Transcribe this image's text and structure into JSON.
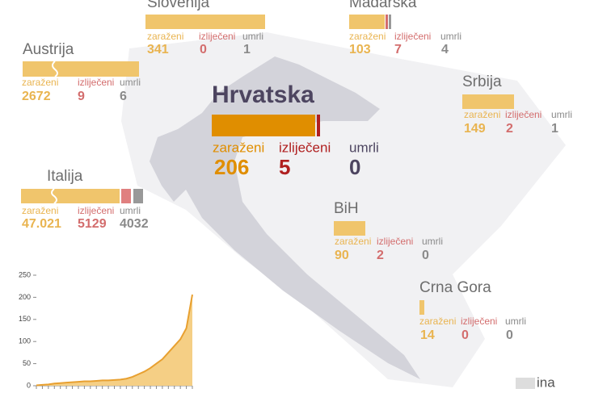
{
  "labels": {
    "infected": "zaraženi",
    "recovered": "izliječeni",
    "deaths": "umrli"
  },
  "countries": [
    {
      "name": "Slovenija",
      "infected": "341",
      "recovered": "0",
      "deaths": "1"
    },
    {
      "name": "Mađarska",
      "infected": "103",
      "recovered": "7",
      "deaths": "4"
    },
    {
      "name": "Austrija",
      "infected": "2672",
      "recovered": "9",
      "deaths": "6"
    },
    {
      "name": "Srbija",
      "infected": "149",
      "recovered": "2",
      "deaths": "1"
    },
    {
      "name": "Hrvatska",
      "infected": "206",
      "recovered": "5",
      "deaths": "0"
    },
    {
      "name": "Italija",
      "infected": "47.021",
      "recovered": "5129",
      "deaths": "4032"
    },
    {
      "name": "BiH",
      "infected": "90",
      "recovered": "2",
      "deaths": "0"
    },
    {
      "name": "Crna Gora",
      "infected": "14",
      "recovered": "0",
      "deaths": "0"
    }
  ],
  "logo": "ina",
  "chart_data": {
    "type": "area",
    "categories": [
      null,
      null,
      null,
      null,
      null,
      null,
      null,
      null,
      null,
      null,
      null,
      null,
      null,
      null,
      null,
      null,
      null,
      null,
      null,
      null,
      null,
      null,
      null,
      null,
      null,
      null,
      null
    ],
    "values": [
      1,
      2,
      3,
      5,
      6,
      7,
      8,
      9,
      10,
      10,
      11,
      12,
      12,
      13,
      14,
      16,
      20,
      26,
      32,
      40,
      50,
      60,
      75,
      90,
      105,
      130,
      206
    ],
    "color": "#e8a030",
    "fill": "#f5cf85",
    "ylim": [
      0,
      250
    ],
    "yticks": [
      0,
      50,
      100,
      150,
      200,
      250
    ]
  }
}
